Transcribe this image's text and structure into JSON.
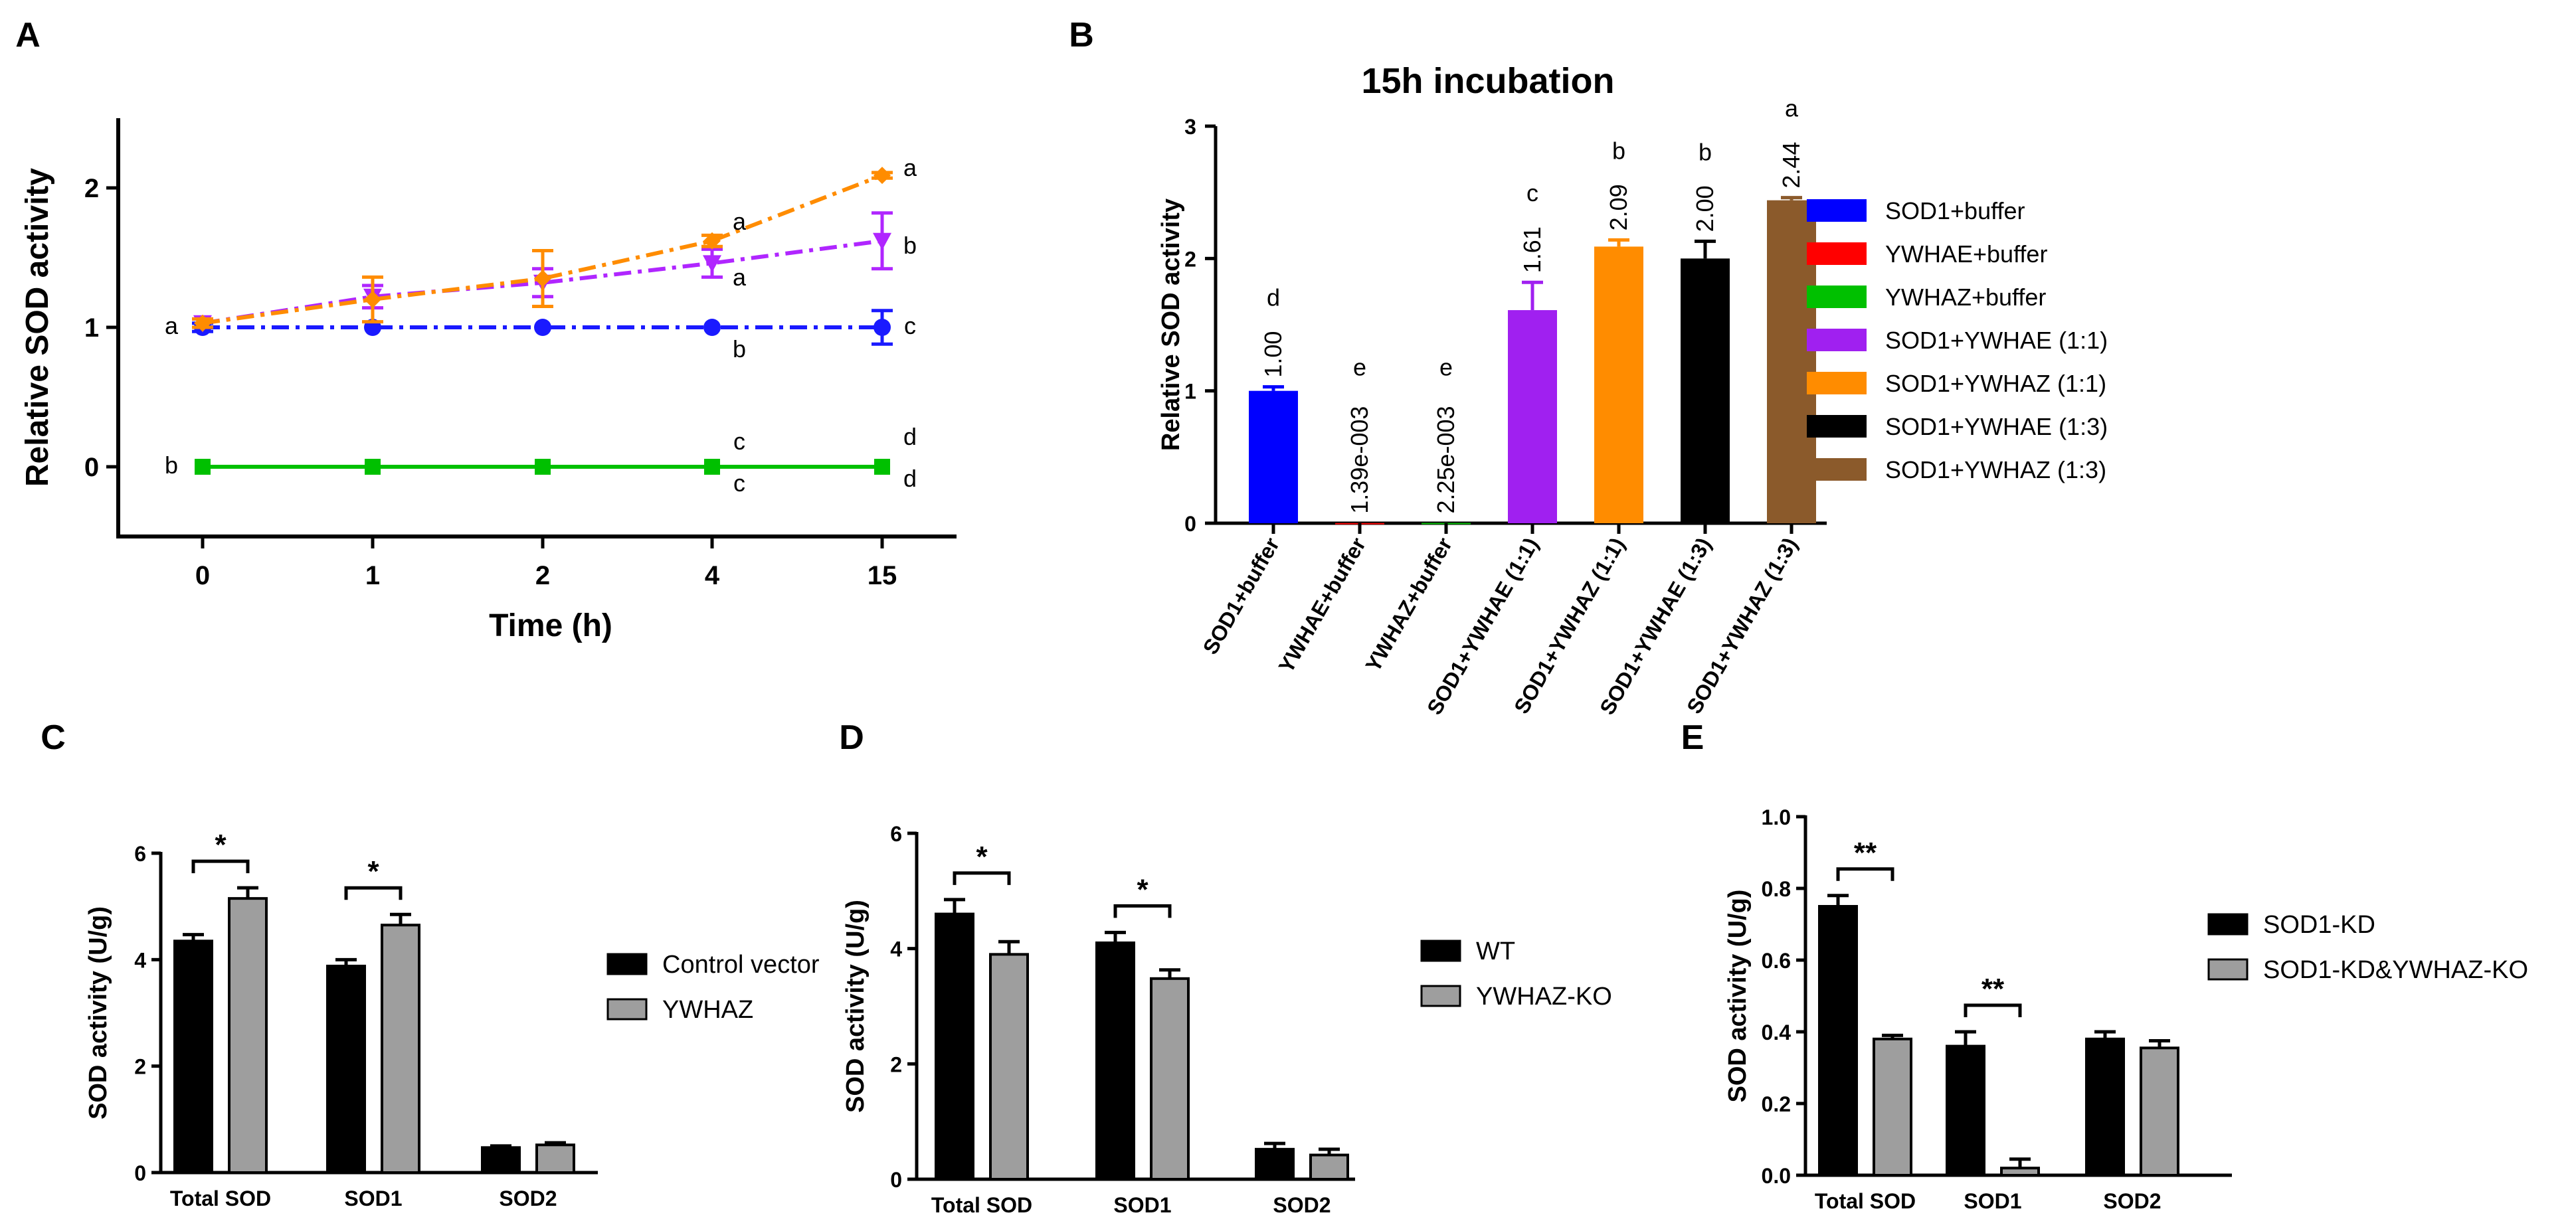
{
  "chart_data": [
    {
      "panel": "A",
      "type": "line",
      "title": "",
      "xlabel": "Time (h)",
      "ylabel": "Relative SOD activity",
      "categories": [
        "0",
        "1",
        "2",
        "4",
        "15"
      ],
      "ylim": [
        -0.5,
        2.5
      ],
      "yticks": [
        "0",
        "1",
        "2"
      ],
      "series": [
        {
          "name": "SOD1+buffer",
          "color": "#1a1aff",
          "values": [
            1.0,
            1.0,
            1.0,
            1.0,
            1.0
          ],
          "errors": [
            0.03,
            0.0,
            0.0,
            0.0,
            0.12
          ],
          "marker": "circle",
          "letters": [
            "a",
            "",
            "",
            "b",
            "c"
          ]
        },
        {
          "name": "SOD1+YWHAE (1:1)",
          "color": "#b026ff",
          "values": [
            1.03,
            1.22,
            1.32,
            1.46,
            1.62
          ],
          "errors": [
            0.03,
            0.08,
            0.1,
            0.1,
            0.2
          ],
          "marker": "triangle",
          "letters": [
            "",
            "",
            "",
            "a",
            "b"
          ]
        },
        {
          "name": "SOD1+YWHAZ (1:1)",
          "color": "#ff8c00",
          "values": [
            1.03,
            1.2,
            1.35,
            1.62,
            2.09
          ],
          "errors": [
            0.03,
            0.16,
            0.2,
            0.04,
            0.02
          ],
          "marker": "diamond",
          "letters": [
            "",
            "",
            "",
            "a",
            "a"
          ]
        },
        {
          "name": "YWHAE+buffer",
          "color": "#ff0000",
          "values": [
            0.0,
            0.0,
            0.0,
            0.0,
            0.0
          ],
          "errors": [
            0,
            0,
            0,
            0,
            0
          ],
          "marker": "square",
          "letters": [
            "b",
            "",
            "",
            "c",
            "d"
          ]
        },
        {
          "name": "YWHAZ+buffer",
          "color": "#00c000",
          "values": [
            0.0,
            0.0,
            0.0,
            0.0,
            0.0
          ],
          "errors": [
            0,
            0,
            0,
            0,
            0
          ],
          "marker": "square",
          "letters": [
            "",
            "",
            "",
            "c",
            "d"
          ]
        }
      ]
    },
    {
      "panel": "B",
      "type": "bar",
      "title": "15h incubation",
      "xlabel": "",
      "ylabel": "Relative SOD activity",
      "ylim": [
        0,
        3
      ],
      "yticks": [
        "0",
        "1",
        "2",
        "3"
      ],
      "categories": [
        "SOD1+buffer",
        "YWHAE+buffer",
        "YWHAZ+buffer",
        "SOD1+YWHAE (1:1)",
        "SOD1+YWHAZ (1:1)",
        "SOD1+YWHAE (1:3)",
        "SOD1+YWHAZ (1:3)"
      ],
      "values": [
        1.0,
        0.00139,
        0.00225,
        1.61,
        2.09,
        2.0,
        2.44
      ],
      "errors": [
        0.03,
        0.0,
        0.0,
        0.21,
        0.05,
        0.13,
        0.02
      ],
      "value_labels": [
        "1.00",
        "1.39e-003",
        "2.25e-003",
        "1.61",
        "2.09",
        "2.00",
        "2.44"
      ],
      "letters": [
        "d",
        "e",
        "e",
        "c",
        "b",
        "b",
        "a"
      ],
      "colors": [
        "#0000ff",
        "#ff0000",
        "#00c000",
        "#a020f0",
        "#ff8c00",
        "#000000",
        "#8b5a2b"
      ],
      "legend": [
        "SOD1+buffer",
        "YWHAE+buffer",
        "YWHAZ+buffer",
        "SOD1+YWHAE (1:1)",
        "SOD1+YWHAZ (1:1)",
        "SOD1+YWHAE (1:3)",
        "SOD1+YWHAZ (1:3)"
      ]
    },
    {
      "panel": "C",
      "type": "bar",
      "title": "",
      "xlabel": "",
      "ylabel": "SOD activity (U/g)",
      "ylim": [
        0,
        6
      ],
      "yticks": [
        "0",
        "2",
        "4",
        "6"
      ],
      "categories": [
        "Total SOD",
        "SOD1",
        "SOD2"
      ],
      "series": [
        {
          "name": "Control vector",
          "color": "#000000",
          "values": [
            4.35,
            3.88,
            0.47
          ],
          "errors": [
            0.12,
            0.12,
            0.03
          ]
        },
        {
          "name": "YWHAZ",
          "color": "#9e9e9e",
          "values": [
            5.15,
            4.65,
            0.52
          ],
          "errors": [
            0.2,
            0.2,
            0.04
          ]
        }
      ],
      "significance": [
        {
          "category": "Total SOD",
          "label": "*"
        },
        {
          "category": "SOD1",
          "label": "*"
        }
      ]
    },
    {
      "panel": "D",
      "type": "bar",
      "title": "",
      "xlabel": "",
      "ylabel": "SOD activity (U/g)",
      "ylim": [
        0,
        6
      ],
      "yticks": [
        "0",
        "2",
        "4",
        "6"
      ],
      "categories": [
        "Total SOD",
        "SOD1",
        "SOD2"
      ],
      "series": [
        {
          "name": "WT",
          "color": "#000000",
          "values": [
            4.6,
            4.1,
            0.52
          ],
          "errors": [
            0.25,
            0.18,
            0.1
          ]
        },
        {
          "name": "YWHAZ-KO",
          "color": "#9e9e9e",
          "values": [
            3.9,
            3.48,
            0.42
          ],
          "errors": [
            0.22,
            0.15,
            0.1
          ]
        }
      ],
      "significance": [
        {
          "category": "Total SOD",
          "label": "*"
        },
        {
          "category": "SOD1",
          "label": "*"
        }
      ]
    },
    {
      "panel": "E",
      "type": "bar",
      "title": "",
      "xlabel": "",
      "ylabel": "SOD activity (U/g)",
      "ylim": [
        0,
        1.0
      ],
      "yticks": [
        "0.0",
        "0.2",
        "0.4",
        "0.6",
        "0.8",
        "1.0"
      ],
      "categories": [
        "Total SOD",
        "SOD1",
        "SOD2"
      ],
      "series": [
        {
          "name": "SOD1-KD",
          "color": "#000000",
          "values": [
            0.75,
            0.36,
            0.38
          ],
          "errors": [
            0.03,
            0.04,
            0.02
          ]
        },
        {
          "name": "SOD1-KD&YWHAZ-KO",
          "color": "#9e9e9e",
          "values": [
            0.38,
            0.02,
            0.355
          ],
          "errors": [
            0.01,
            0.025,
            0.02
          ]
        }
      ],
      "significance": [
        {
          "category": "Total SOD",
          "label": "**"
        },
        {
          "category": "SOD1",
          "label": "**"
        }
      ]
    }
  ],
  "panel_labels": [
    "A",
    "B",
    "C",
    "D",
    "E"
  ]
}
